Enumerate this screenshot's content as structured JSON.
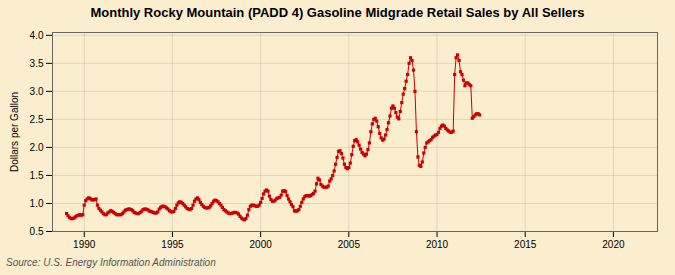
{
  "chart_data": {
    "type": "line",
    "title": "Monthly Rocky Mountain (PADD 4) Gasoline Midgrade Retail Sales by All Sellers",
    "ylabel": "Dollars per Gallon",
    "annotations": [
      "Source: U.S. Energy Information Administration"
    ],
    "color": "#cc0000",
    "marker": "square",
    "grid": true,
    "xlim": [
      1988.2,
      2022.5
    ],
    "ylim": [
      0.5,
      4.05
    ],
    "xticks": [
      1990,
      1995,
      2000,
      2005,
      2010,
      2015,
      2020
    ],
    "yticks": [
      0.5,
      {
        "value": 1.0,
        "label": "1.0"
      },
      1.5,
      {
        "value": 2.0,
        "label": "2.0"
      },
      2.5,
      {
        "value": 3.0,
        "label": "3.0"
      },
      3.5,
      {
        "value": 4.0,
        "label": "4.0"
      }
    ],
    "x": [
      1989.0,
      1989.083,
      1989.167,
      1989.25,
      1989.333,
      1989.417,
      1989.5,
      1989.583,
      1989.667,
      1989.75,
      1989.833,
      1989.917,
      1990.0,
      1990.083,
      1990.167,
      1990.25,
      1990.333,
      1990.417,
      1990.5,
      1990.583,
      1990.667,
      1990.75,
      1990.833,
      1990.917,
      1991.0,
      1991.083,
      1991.167,
      1991.25,
      1991.333,
      1991.417,
      1991.5,
      1991.583,
      1991.667,
      1991.75,
      1991.833,
      1991.917,
      1992.0,
      1992.083,
      1992.167,
      1992.25,
      1992.333,
      1992.417,
      1992.5,
      1992.583,
      1992.667,
      1992.75,
      1992.833,
      1992.917,
      1993.0,
      1993.083,
      1993.167,
      1993.25,
      1993.333,
      1993.417,
      1993.5,
      1993.583,
      1993.667,
      1993.75,
      1993.833,
      1993.917,
      1994.0,
      1994.083,
      1994.167,
      1994.25,
      1994.333,
      1994.417,
      1994.5,
      1994.583,
      1994.667,
      1994.75,
      1994.833,
      1994.917,
      1995.0,
      1995.083,
      1995.167,
      1995.25,
      1995.333,
      1995.417,
      1995.5,
      1995.583,
      1995.667,
      1995.75,
      1995.833,
      1995.917,
      1996.0,
      1996.083,
      1996.167,
      1996.25,
      1996.333,
      1996.417,
      1996.5,
      1996.583,
      1996.667,
      1996.75,
      1996.833,
      1996.917,
      1997.0,
      1997.083,
      1997.167,
      1997.25,
      1997.333,
      1997.417,
      1997.5,
      1997.583,
      1997.667,
      1997.75,
      1997.833,
      1997.917,
      1998.0,
      1998.083,
      1998.167,
      1998.25,
      1998.333,
      1998.417,
      1998.5,
      1998.583,
      1998.667,
      1998.75,
      1998.833,
      1998.917,
      1999.0,
      1999.083,
      1999.167,
      1999.25,
      1999.333,
      1999.417,
      1999.5,
      1999.583,
      1999.667,
      1999.75,
      1999.833,
      1999.917,
      2000.0,
      2000.083,
      2000.167,
      2000.25,
      2000.333,
      2000.417,
      2000.5,
      2000.583,
      2000.667,
      2000.75,
      2000.833,
      2000.917,
      2001.0,
      2001.083,
      2001.167,
      2001.25,
      2001.333,
      2001.417,
      2001.5,
      2001.583,
      2001.667,
      2001.75,
      2001.833,
      2001.917,
      2002.0,
      2002.083,
      2002.167,
      2002.25,
      2002.333,
      2002.417,
      2002.5,
      2002.583,
      2002.667,
      2002.75,
      2002.833,
      2002.917,
      2003.0,
      2003.083,
      2003.167,
      2003.25,
      2003.333,
      2003.417,
      2003.5,
      2003.583,
      2003.667,
      2003.75,
      2003.833,
      2003.917,
      2004.0,
      2004.083,
      2004.167,
      2004.25,
      2004.333,
      2004.417,
      2004.5,
      2004.583,
      2004.667,
      2004.75,
      2004.833,
      2004.917,
      2005.0,
      2005.083,
      2005.167,
      2005.25,
      2005.333,
      2005.417,
      2005.5,
      2005.583,
      2005.667,
      2005.75,
      2005.833,
      2005.917,
      2006.0,
      2006.083,
      2006.167,
      2006.25,
      2006.333,
      2006.417,
      2006.5,
      2006.583,
      2006.667,
      2006.75,
      2006.833,
      2006.917,
      2007.0,
      2007.083,
      2007.167,
      2007.25,
      2007.333,
      2007.417,
      2007.5,
      2007.583,
      2007.667,
      2007.75,
      2007.833,
      2007.917,
      2008.0,
      2008.083,
      2008.167,
      2008.25,
      2008.333,
      2008.417,
      2008.5,
      2008.583,
      2008.667,
      2008.75,
      2008.833,
      2008.917,
      2009.0,
      2009.083,
      2009.167,
      2009.25,
      2009.333,
      2009.417,
      2009.5,
      2009.583,
      2009.667,
      2009.75,
      2009.833,
      2009.917,
      2010.0,
      2010.083,
      2010.167,
      2010.25,
      2010.333,
      2010.417,
      2010.5,
      2010.583,
      2010.667,
      2010.75,
      2010.833,
      2010.917,
      2011.0,
      2011.083,
      2011.167,
      2011.25,
      2011.333,
      2011.417,
      2011.5,
      2011.583,
      2011.667,
      2011.75,
      2011.833,
      2011.917,
      2012.0,
      2012.083,
      2012.167,
      2012.25,
      2012.333,
      2012.417
    ],
    "values": [
      0.82,
      0.78,
      0.75,
      0.73,
      0.73,
      0.74,
      0.76,
      0.78,
      0.79,
      0.8,
      0.79,
      0.8,
      0.97,
      1.05,
      1.08,
      1.1,
      1.09,
      1.07,
      1.06,
      1.07,
      1.08,
      0.97,
      0.91,
      0.88,
      0.85,
      0.82,
      0.8,
      0.8,
      0.83,
      0.85,
      0.87,
      0.86,
      0.84,
      0.82,
      0.8,
      0.8,
      0.8,
      0.8,
      0.82,
      0.85,
      0.88,
      0.89,
      0.9,
      0.9,
      0.89,
      0.87,
      0.84,
      0.83,
      0.82,
      0.82,
      0.84,
      0.86,
      0.89,
      0.9,
      0.9,
      0.89,
      0.87,
      0.86,
      0.85,
      0.84,
      0.83,
      0.83,
      0.85,
      0.9,
      0.93,
      0.95,
      0.95,
      0.94,
      0.92,
      0.9,
      0.87,
      0.85,
      0.85,
      0.86,
      0.91,
      0.97,
      1.01,
      1.03,
      1.02,
      1.0,
      0.97,
      0.94,
      0.91,
      0.9,
      0.89,
      0.91,
      0.97,
      1.04,
      1.08,
      1.1,
      1.07,
      1.02,
      0.98,
      0.95,
      0.93,
      0.92,
      0.92,
      0.93,
      0.96,
      1.0,
      1.04,
      1.06,
      1.05,
      1.03,
      1.0,
      0.97,
      0.93,
      0.89,
      0.87,
      0.85,
      0.83,
      0.82,
      0.82,
      0.83,
      0.84,
      0.84,
      0.83,
      0.81,
      0.77,
      0.74,
      0.72,
      0.71,
      0.73,
      0.79,
      0.89,
      0.95,
      0.97,
      0.97,
      0.96,
      0.95,
      0.95,
      0.97,
      1.02,
      1.09,
      1.17,
      1.22,
      1.24,
      1.22,
      1.13,
      1.07,
      1.04,
      1.04,
      1.06,
      1.09,
      1.1,
      1.11,
      1.15,
      1.22,
      1.23,
      1.21,
      1.14,
      1.08,
      1.03,
      0.98,
      0.94,
      0.87,
      0.86,
      0.87,
      0.89,
      0.95,
      1.02,
      1.08,
      1.12,
      1.14,
      1.14,
      1.13,
      1.14,
      1.16,
      1.18,
      1.22,
      1.35,
      1.45,
      1.42,
      1.34,
      1.31,
      1.29,
      1.29,
      1.29,
      1.31,
      1.4,
      1.44,
      1.5,
      1.58,
      1.7,
      1.82,
      1.93,
      1.94,
      1.89,
      1.81,
      1.7,
      1.64,
      1.62,
      1.64,
      1.72,
      1.87,
      2.02,
      2.12,
      2.14,
      2.1,
      2.04,
      1.97,
      1.91,
      1.88,
      1.85,
      1.88,
      1.96,
      2.08,
      2.28,
      2.42,
      2.5,
      2.52,
      2.47,
      2.37,
      2.25,
      2.17,
      2.13,
      2.15,
      2.22,
      2.32,
      2.44,
      2.56,
      2.7,
      2.74,
      2.7,
      2.62,
      2.54,
      2.51,
      2.64,
      2.8,
      2.95,
      3.05,
      3.18,
      3.3,
      3.5,
      3.6,
      3.55,
      3.38,
      3.0,
      2.28,
      1.83,
      1.68,
      1.66,
      1.74,
      1.9,
      2.0,
      2.08,
      2.1,
      2.12,
      2.14,
      2.18,
      2.2,
      2.22,
      2.23,
      2.27,
      2.34,
      2.38,
      2.4,
      2.38,
      2.34,
      2.31,
      2.29,
      2.27,
      2.27,
      2.29,
      3.3,
      3.6,
      3.65,
      3.55,
      3.35,
      3.3,
      3.2,
      3.1,
      3.15,
      3.15,
      3.12,
      3.1,
      2.52,
      2.55,
      2.58,
      2.6,
      2.6,
      2.58
    ]
  }
}
